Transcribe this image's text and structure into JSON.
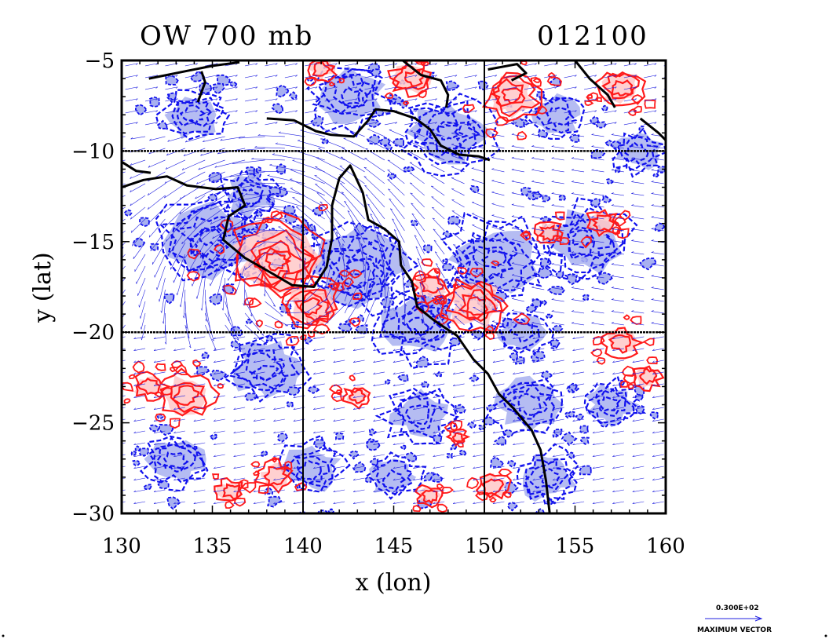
{
  "title_left": "OW 700 mb",
  "title_right": "012100",
  "reference_vector": {
    "value_label": "0.300E+02",
    "caption": "MAXIMUM VECTOR"
  },
  "colors": {
    "positive_contour": "#ff1a1a",
    "positive_fill": "#ffc8c8",
    "negative_contour": "#1010ee",
    "negative_fill": "#a8b0f0",
    "coastline": "#000000",
    "wind_vectors": "#2020e0"
  },
  "chart_data": {
    "type": "map-contour-vector",
    "xlabel": "x (lon)",
    "ylabel": "y (lat)",
    "xlim": [
      130,
      160
    ],
    "ylim": [
      -30,
      -5
    ],
    "x_ticks": [
      130,
      135,
      140,
      145,
      150,
      155,
      160
    ],
    "y_ticks": [
      -5,
      -10,
      -15,
      -20,
      -25,
      -30
    ],
    "gridlines": {
      "lon": [
        140,
        150
      ],
      "lat": [
        -10,
        -20
      ]
    },
    "positive_features": [
      {
        "lon": 138.5,
        "lat": -16.0,
        "size": 2.6
      },
      {
        "lon": 140.5,
        "lat": -18.5,
        "size": 1.6
      },
      {
        "lon": 149.5,
        "lat": -18.5,
        "size": 1.8
      },
      {
        "lon": 147.0,
        "lat": -17.5,
        "size": 1.0
      },
      {
        "lon": 151.5,
        "lat": -7.0,
        "size": 1.6
      },
      {
        "lon": 157.5,
        "lat": -6.5,
        "size": 1.3
      },
      {
        "lon": 146.0,
        "lat": -6.0,
        "size": 1.2
      },
      {
        "lon": 141.0,
        "lat": -5.5,
        "size": 0.8
      },
      {
        "lon": 133.5,
        "lat": -23.5,
        "size": 1.5
      },
      {
        "lon": 131.5,
        "lat": -23.0,
        "size": 0.9
      },
      {
        "lon": 138.5,
        "lat": -28.0,
        "size": 1.0
      },
      {
        "lon": 136.0,
        "lat": -28.8,
        "size": 0.8
      },
      {
        "lon": 157.5,
        "lat": -20.5,
        "size": 1.0
      },
      {
        "lon": 159.0,
        "lat": -22.5,
        "size": 0.8
      },
      {
        "lon": 156.5,
        "lat": -14.0,
        "size": 0.9
      },
      {
        "lon": 153.5,
        "lat": -14.5,
        "size": 0.8
      },
      {
        "lon": 150.5,
        "lat": -28.5,
        "size": 0.9
      },
      {
        "lon": 147.0,
        "lat": -29.0,
        "size": 0.7
      },
      {
        "lon": 143.0,
        "lat": -23.5,
        "size": 0.7
      },
      {
        "lon": 148.5,
        "lat": -25.8,
        "size": 0.5
      }
    ],
    "negative_features": [
      {
        "lon": 135.0,
        "lat": -15.0,
        "size": 3.0
      },
      {
        "lon": 143.0,
        "lat": -16.5,
        "size": 3.0
      },
      {
        "lon": 146.5,
        "lat": -19.5,
        "size": 2.5
      },
      {
        "lon": 150.5,
        "lat": -16.0,
        "size": 2.8
      },
      {
        "lon": 155.5,
        "lat": -15.0,
        "size": 2.5
      },
      {
        "lon": 148.0,
        "lat": -9.0,
        "size": 2.5
      },
      {
        "lon": 142.5,
        "lat": -7.0,
        "size": 2.2
      },
      {
        "lon": 134.0,
        "lat": -8.0,
        "size": 1.8
      },
      {
        "lon": 138.0,
        "lat": -22.0,
        "size": 2.2
      },
      {
        "lon": 146.5,
        "lat": -24.5,
        "size": 2.0
      },
      {
        "lon": 152.5,
        "lat": -24.0,
        "size": 2.0
      },
      {
        "lon": 157.0,
        "lat": -24.0,
        "size": 1.6
      },
      {
        "lon": 133.0,
        "lat": -27.0,
        "size": 1.8
      },
      {
        "lon": 140.5,
        "lat": -27.5,
        "size": 1.8
      },
      {
        "lon": 153.5,
        "lat": -28.0,
        "size": 1.8
      },
      {
        "lon": 158.5,
        "lat": -10.0,
        "size": 1.5
      },
      {
        "lon": 154.0,
        "lat": -8.0,
        "size": 1.5
      },
      {
        "lon": 145.0,
        "lat": -28.0,
        "size": 1.5
      },
      {
        "lon": 137.0,
        "lat": -12.5,
        "size": 1.6
      },
      {
        "lon": 152.0,
        "lat": -20.0,
        "size": 1.5
      }
    ]
  }
}
